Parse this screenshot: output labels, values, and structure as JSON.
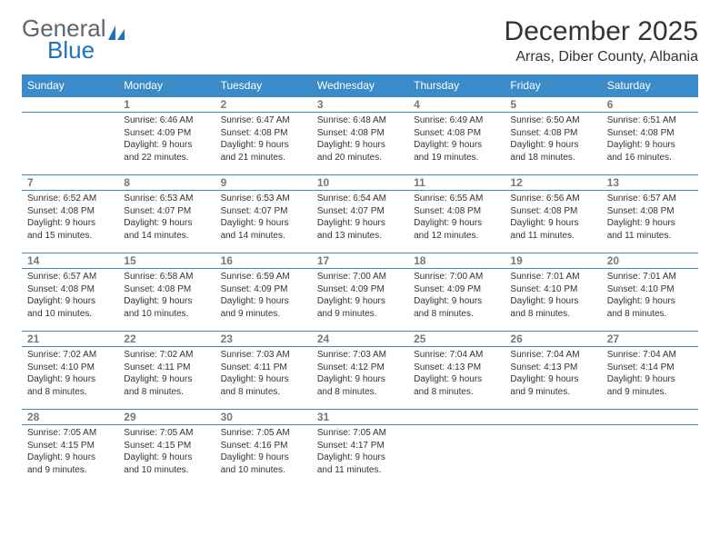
{
  "brand": {
    "name_gray": "General",
    "name_blue": "Blue",
    "icon_color": "#1f71b8"
  },
  "header": {
    "title": "December 2025",
    "location": "Arras, Diber County, Albania"
  },
  "colors": {
    "header_bg": "#3b8bc9",
    "header_text": "#ffffff",
    "rule": "#3b8bc9",
    "daynum": "#777777",
    "body_text": "#333333",
    "logo_gray": "#5c6670",
    "logo_blue": "#1f71b8",
    "page_bg": "#ffffff"
  },
  "weekdays": [
    "Sunday",
    "Monday",
    "Tuesday",
    "Wednesday",
    "Thursday",
    "Friday",
    "Saturday"
  ],
  "weeks": [
    [
      {
        "n": "",
        "sr": "",
        "ss": "",
        "dl": ""
      },
      {
        "n": "1",
        "sr": "Sunrise: 6:46 AM",
        "ss": "Sunset: 4:09 PM",
        "dl": "Daylight: 9 hours and 22 minutes."
      },
      {
        "n": "2",
        "sr": "Sunrise: 6:47 AM",
        "ss": "Sunset: 4:08 PM",
        "dl": "Daylight: 9 hours and 21 minutes."
      },
      {
        "n": "3",
        "sr": "Sunrise: 6:48 AM",
        "ss": "Sunset: 4:08 PM",
        "dl": "Daylight: 9 hours and 20 minutes."
      },
      {
        "n": "4",
        "sr": "Sunrise: 6:49 AM",
        "ss": "Sunset: 4:08 PM",
        "dl": "Daylight: 9 hours and 19 minutes."
      },
      {
        "n": "5",
        "sr": "Sunrise: 6:50 AM",
        "ss": "Sunset: 4:08 PM",
        "dl": "Daylight: 9 hours and 18 minutes."
      },
      {
        "n": "6",
        "sr": "Sunrise: 6:51 AM",
        "ss": "Sunset: 4:08 PM",
        "dl": "Daylight: 9 hours and 16 minutes."
      }
    ],
    [
      {
        "n": "7",
        "sr": "Sunrise: 6:52 AM",
        "ss": "Sunset: 4:08 PM",
        "dl": "Daylight: 9 hours and 15 minutes."
      },
      {
        "n": "8",
        "sr": "Sunrise: 6:53 AM",
        "ss": "Sunset: 4:07 PM",
        "dl": "Daylight: 9 hours and 14 minutes."
      },
      {
        "n": "9",
        "sr": "Sunrise: 6:53 AM",
        "ss": "Sunset: 4:07 PM",
        "dl": "Daylight: 9 hours and 14 minutes."
      },
      {
        "n": "10",
        "sr": "Sunrise: 6:54 AM",
        "ss": "Sunset: 4:07 PM",
        "dl": "Daylight: 9 hours and 13 minutes."
      },
      {
        "n": "11",
        "sr": "Sunrise: 6:55 AM",
        "ss": "Sunset: 4:08 PM",
        "dl": "Daylight: 9 hours and 12 minutes."
      },
      {
        "n": "12",
        "sr": "Sunrise: 6:56 AM",
        "ss": "Sunset: 4:08 PM",
        "dl": "Daylight: 9 hours and 11 minutes."
      },
      {
        "n": "13",
        "sr": "Sunrise: 6:57 AM",
        "ss": "Sunset: 4:08 PM",
        "dl": "Daylight: 9 hours and 11 minutes."
      }
    ],
    [
      {
        "n": "14",
        "sr": "Sunrise: 6:57 AM",
        "ss": "Sunset: 4:08 PM",
        "dl": "Daylight: 9 hours and 10 minutes."
      },
      {
        "n": "15",
        "sr": "Sunrise: 6:58 AM",
        "ss": "Sunset: 4:08 PM",
        "dl": "Daylight: 9 hours and 10 minutes."
      },
      {
        "n": "16",
        "sr": "Sunrise: 6:59 AM",
        "ss": "Sunset: 4:09 PM",
        "dl": "Daylight: 9 hours and 9 minutes."
      },
      {
        "n": "17",
        "sr": "Sunrise: 7:00 AM",
        "ss": "Sunset: 4:09 PM",
        "dl": "Daylight: 9 hours and 9 minutes."
      },
      {
        "n": "18",
        "sr": "Sunrise: 7:00 AM",
        "ss": "Sunset: 4:09 PM",
        "dl": "Daylight: 9 hours and 8 minutes."
      },
      {
        "n": "19",
        "sr": "Sunrise: 7:01 AM",
        "ss": "Sunset: 4:10 PM",
        "dl": "Daylight: 9 hours and 8 minutes."
      },
      {
        "n": "20",
        "sr": "Sunrise: 7:01 AM",
        "ss": "Sunset: 4:10 PM",
        "dl": "Daylight: 9 hours and 8 minutes."
      }
    ],
    [
      {
        "n": "21",
        "sr": "Sunrise: 7:02 AM",
        "ss": "Sunset: 4:10 PM",
        "dl": "Daylight: 9 hours and 8 minutes."
      },
      {
        "n": "22",
        "sr": "Sunrise: 7:02 AM",
        "ss": "Sunset: 4:11 PM",
        "dl": "Daylight: 9 hours and 8 minutes."
      },
      {
        "n": "23",
        "sr": "Sunrise: 7:03 AM",
        "ss": "Sunset: 4:11 PM",
        "dl": "Daylight: 9 hours and 8 minutes."
      },
      {
        "n": "24",
        "sr": "Sunrise: 7:03 AM",
        "ss": "Sunset: 4:12 PM",
        "dl": "Daylight: 9 hours and 8 minutes."
      },
      {
        "n": "25",
        "sr": "Sunrise: 7:04 AM",
        "ss": "Sunset: 4:13 PM",
        "dl": "Daylight: 9 hours and 8 minutes."
      },
      {
        "n": "26",
        "sr": "Sunrise: 7:04 AM",
        "ss": "Sunset: 4:13 PM",
        "dl": "Daylight: 9 hours and 9 minutes."
      },
      {
        "n": "27",
        "sr": "Sunrise: 7:04 AM",
        "ss": "Sunset: 4:14 PM",
        "dl": "Daylight: 9 hours and 9 minutes."
      }
    ],
    [
      {
        "n": "28",
        "sr": "Sunrise: 7:05 AM",
        "ss": "Sunset: 4:15 PM",
        "dl": "Daylight: 9 hours and 9 minutes."
      },
      {
        "n": "29",
        "sr": "Sunrise: 7:05 AM",
        "ss": "Sunset: 4:15 PM",
        "dl": "Daylight: 9 hours and 10 minutes."
      },
      {
        "n": "30",
        "sr": "Sunrise: 7:05 AM",
        "ss": "Sunset: 4:16 PM",
        "dl": "Daylight: 9 hours and 10 minutes."
      },
      {
        "n": "31",
        "sr": "Sunrise: 7:05 AM",
        "ss": "Sunset: 4:17 PM",
        "dl": "Daylight: 9 hours and 11 minutes."
      },
      {
        "n": "",
        "sr": "",
        "ss": "",
        "dl": ""
      },
      {
        "n": "",
        "sr": "",
        "ss": "",
        "dl": ""
      },
      {
        "n": "",
        "sr": "",
        "ss": "",
        "dl": ""
      }
    ]
  ]
}
